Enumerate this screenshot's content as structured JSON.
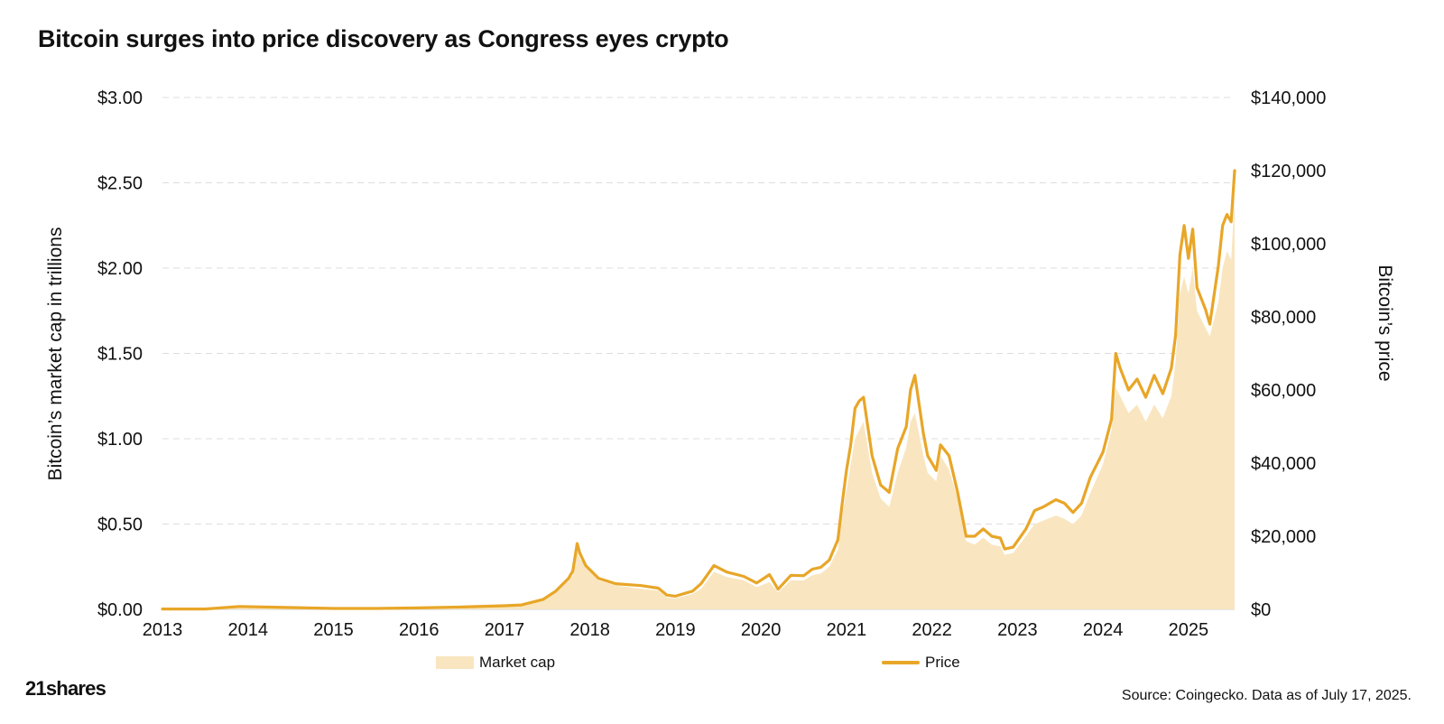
{
  "header": {
    "title": "Bitcoin surges into price discovery as Congress eyes crypto"
  },
  "footer": {
    "brand": "21shares",
    "source": "Source: Coingecko. Data as of July 17, 2025."
  },
  "legend": {
    "market_cap": "Market cap",
    "price": "Price"
  },
  "colors": {
    "area": "#f9e6c0",
    "line": "#e8a628",
    "grid": "#dddddd"
  },
  "chart_data": {
    "type": "area",
    "title": "Bitcoin surges into price discovery as Congress eyes crypto",
    "ylabel_left": "Bitcoin’s market cap in trillions",
    "ylabel_right": "Bitcoin’s price",
    "left_ticks": [
      "$0.00",
      "$0.50",
      "$1.00",
      "$1.50",
      "$2.00",
      "$2.50",
      "$3.00"
    ],
    "right_ticks": [
      "$0",
      "$20,000",
      "$40,000",
      "$60,000",
      "$80,000",
      "$100,000",
      "$120,000",
      "$140,000"
    ],
    "x_ticks": [
      "2013",
      "2014",
      "2015",
      "2016",
      "2017",
      "2018",
      "2019",
      "2020",
      "2021",
      "2022",
      "2023",
      "2024",
      "2025"
    ],
    "left_ylim": [
      0,
      3
    ],
    "right_ylim": [
      0,
      140000
    ],
    "xlim": [
      2013.0,
      2025.54
    ],
    "grid": "horizontal dashed",
    "legend_position": "bottom",
    "series": [
      {
        "name": "Market cap",
        "axis": "left",
        "points": [
          [
            2013.0,
            0.002
          ],
          [
            2013.5,
            0.001
          ],
          [
            2013.9,
            0.013
          ],
          [
            2014.5,
            0.008
          ],
          [
            2015.0,
            0.004
          ],
          [
            2015.5,
            0.004
          ],
          [
            2016.0,
            0.006
          ],
          [
            2016.5,
            0.01
          ],
          [
            2017.0,
            0.016
          ],
          [
            2017.2,
            0.02
          ],
          [
            2017.45,
            0.05
          ],
          [
            2017.6,
            0.1
          ],
          [
            2017.75,
            0.17
          ],
          [
            2017.8,
            0.2
          ],
          [
            2017.85,
            0.35
          ],
          [
            2017.88,
            0.3
          ],
          [
            2017.95,
            0.25
          ],
          [
            2018.1,
            0.17
          ],
          [
            2018.3,
            0.14
          ],
          [
            2018.6,
            0.12
          ],
          [
            2018.8,
            0.11
          ],
          [
            2018.9,
            0.07
          ],
          [
            2019.0,
            0.065
          ],
          [
            2019.2,
            0.09
          ],
          [
            2019.3,
            0.12
          ],
          [
            2019.45,
            0.22
          ],
          [
            2019.6,
            0.19
          ],
          [
            2019.8,
            0.17
          ],
          [
            2019.95,
            0.13
          ],
          [
            2020.1,
            0.16
          ],
          [
            2020.2,
            0.1
          ],
          [
            2020.35,
            0.17
          ],
          [
            2020.5,
            0.17
          ],
          [
            2020.6,
            0.2
          ],
          [
            2020.7,
            0.21
          ],
          [
            2020.8,
            0.25
          ],
          [
            2020.9,
            0.35
          ],
          [
            2020.95,
            0.55
          ],
          [
            2021.0,
            0.7
          ],
          [
            2021.05,
            0.85
          ],
          [
            2021.1,
            1.0
          ],
          [
            2021.15,
            1.05
          ],
          [
            2021.2,
            1.1
          ],
          [
            2021.3,
            0.8
          ],
          [
            2021.4,
            0.65
          ],
          [
            2021.5,
            0.6
          ],
          [
            2021.6,
            0.8
          ],
          [
            2021.7,
            0.95
          ],
          [
            2021.75,
            1.1
          ],
          [
            2021.8,
            1.15
          ],
          [
            2021.9,
            0.9
          ],
          [
            2021.95,
            0.8
          ],
          [
            2022.05,
            0.75
          ],
          [
            2022.1,
            0.9
          ],
          [
            2022.2,
            0.82
          ],
          [
            2022.3,
            0.65
          ],
          [
            2022.4,
            0.4
          ],
          [
            2022.5,
            0.38
          ],
          [
            2022.6,
            0.42
          ],
          [
            2022.7,
            0.38
          ],
          [
            2022.8,
            0.37
          ],
          [
            2022.85,
            0.32
          ],
          [
            2022.95,
            0.33
          ],
          [
            2023.1,
            0.43
          ],
          [
            2023.2,
            0.5
          ],
          [
            2023.3,
            0.52
          ],
          [
            2023.45,
            0.55
          ],
          [
            2023.55,
            0.53
          ],
          [
            2023.65,
            0.5
          ],
          [
            2023.75,
            0.55
          ],
          [
            2023.85,
            0.68
          ],
          [
            2024.0,
            0.85
          ],
          [
            2024.1,
            1.05
          ],
          [
            2024.15,
            1.3
          ],
          [
            2024.2,
            1.25
          ],
          [
            2024.3,
            1.15
          ],
          [
            2024.4,
            1.2
          ],
          [
            2024.5,
            1.1
          ],
          [
            2024.6,
            1.2
          ],
          [
            2024.7,
            1.12
          ],
          [
            2024.8,
            1.25
          ],
          [
            2024.85,
            1.45
          ],
          [
            2024.9,
            1.85
          ],
          [
            2024.95,
            1.95
          ],
          [
            2025.0,
            1.85
          ],
          [
            2025.05,
            2.0
          ],
          [
            2025.1,
            1.75
          ],
          [
            2025.2,
            1.65
          ],
          [
            2025.25,
            1.6
          ],
          [
            2025.35,
            1.8
          ],
          [
            2025.4,
            2.0
          ],
          [
            2025.45,
            2.1
          ],
          [
            2025.5,
            2.05
          ],
          [
            2025.54,
            2.42
          ]
        ]
      },
      {
        "name": "Price",
        "axis": "right",
        "points": [
          [
            2013.0,
            100
          ],
          [
            2013.5,
            100
          ],
          [
            2013.9,
            800
          ],
          [
            2014.5,
            500
          ],
          [
            2015.0,
            250
          ],
          [
            2015.5,
            250
          ],
          [
            2016.0,
            400
          ],
          [
            2016.5,
            650
          ],
          [
            2017.0,
            1000
          ],
          [
            2017.2,
            1200
          ],
          [
            2017.45,
            2700
          ],
          [
            2017.6,
            5000
          ],
          [
            2017.75,
            8500
          ],
          [
            2017.8,
            10500
          ],
          [
            2017.85,
            18000
          ],
          [
            2017.88,
            15500
          ],
          [
            2017.95,
            12000
          ],
          [
            2018.1,
            8500
          ],
          [
            2018.3,
            7000
          ],
          [
            2018.6,
            6500
          ],
          [
            2018.8,
            5800
          ],
          [
            2018.9,
            3900
          ],
          [
            2019.0,
            3600
          ],
          [
            2019.2,
            5000
          ],
          [
            2019.3,
            7000
          ],
          [
            2019.45,
            12000
          ],
          [
            2019.6,
            10200
          ],
          [
            2019.8,
            9000
          ],
          [
            2019.95,
            7200
          ],
          [
            2020.1,
            9500
          ],
          [
            2020.2,
            5500
          ],
          [
            2020.35,
            9300
          ],
          [
            2020.5,
            9200
          ],
          [
            2020.6,
            11000
          ],
          [
            2020.7,
            11500
          ],
          [
            2020.8,
            13500
          ],
          [
            2020.9,
            19000
          ],
          [
            2020.95,
            29000
          ],
          [
            2021.0,
            38000
          ],
          [
            2021.05,
            45000
          ],
          [
            2021.1,
            55000
          ],
          [
            2021.15,
            57000
          ],
          [
            2021.2,
            58000
          ],
          [
            2021.3,
            42000
          ],
          [
            2021.4,
            34000
          ],
          [
            2021.5,
            32000
          ],
          [
            2021.6,
            44000
          ],
          [
            2021.7,
            50000
          ],
          [
            2021.75,
            60000
          ],
          [
            2021.8,
            64000
          ],
          [
            2021.9,
            48000
          ],
          [
            2021.95,
            42000
          ],
          [
            2022.05,
            38000
          ],
          [
            2022.1,
            45000
          ],
          [
            2022.2,
            42000
          ],
          [
            2022.3,
            32000
          ],
          [
            2022.4,
            20000
          ],
          [
            2022.5,
            20000
          ],
          [
            2022.6,
            22000
          ],
          [
            2022.7,
            20000
          ],
          [
            2022.8,
            19500
          ],
          [
            2022.85,
            16500
          ],
          [
            2022.95,
            17000
          ],
          [
            2023.1,
            22000
          ],
          [
            2023.2,
            27000
          ],
          [
            2023.3,
            28000
          ],
          [
            2023.45,
            30000
          ],
          [
            2023.55,
            29000
          ],
          [
            2023.65,
            26500
          ],
          [
            2023.75,
            29000
          ],
          [
            2023.85,
            36000
          ],
          [
            2024.0,
            43000
          ],
          [
            2024.1,
            52000
          ],
          [
            2024.15,
            70000
          ],
          [
            2024.2,
            66000
          ],
          [
            2024.3,
            60000
          ],
          [
            2024.4,
            63000
          ],
          [
            2024.5,
            58000
          ],
          [
            2024.6,
            64000
          ],
          [
            2024.7,
            59000
          ],
          [
            2024.8,
            66000
          ],
          [
            2024.85,
            75000
          ],
          [
            2024.9,
            97000
          ],
          [
            2024.95,
            105000
          ],
          [
            2025.0,
            96000
          ],
          [
            2025.05,
            104000
          ],
          [
            2025.1,
            88000
          ],
          [
            2025.2,
            82000
          ],
          [
            2025.25,
            78000
          ],
          [
            2025.35,
            94000
          ],
          [
            2025.4,
            105000
          ],
          [
            2025.45,
            108000
          ],
          [
            2025.5,
            106000
          ],
          [
            2025.54,
            120000
          ]
        ]
      }
    ]
  }
}
